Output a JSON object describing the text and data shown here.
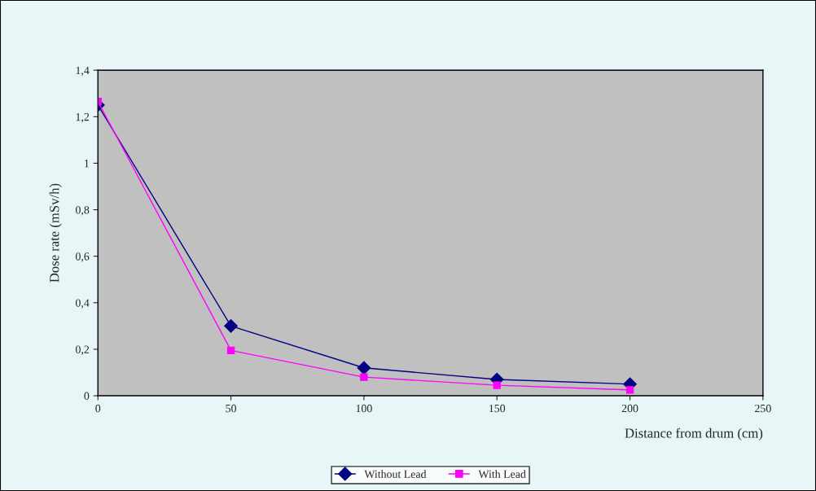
{
  "chart_data": {
    "type": "line",
    "xlabel": "Distance from drum (cm)",
    "ylabel": "Dose rate (mSv/h)",
    "x": [
      0,
      50,
      100,
      150,
      200
    ],
    "series": [
      {
        "name": "Without Lead",
        "color": "#000080",
        "marker": "diamond",
        "values": [
          1.25,
          0.3,
          0.12,
          0.07,
          0.05
        ]
      },
      {
        "name": "With Lead",
        "color": "#ff00ff",
        "marker": "square",
        "values": [
          1.265,
          0.195,
          0.08,
          0.045,
          0.025
        ]
      }
    ],
    "xlim": [
      0,
      250
    ],
    "xticks": [
      0,
      50,
      100,
      150,
      200,
      250
    ],
    "ylim": [
      0,
      1.4
    ],
    "yticks": [
      0,
      {
        "value": 0.2,
        "label": "0,2"
      },
      {
        "value": 0.4,
        "label": "0,4"
      },
      {
        "value": 0.6,
        "label": "0,6"
      },
      {
        "value": 0.8,
        "label": "0,8"
      },
      1,
      {
        "value": 1.2,
        "label": "1,2"
      },
      {
        "value": 1.4,
        "label": "1,4"
      }
    ],
    "grid": false,
    "legend": "bottom",
    "line_style": "solid"
  }
}
